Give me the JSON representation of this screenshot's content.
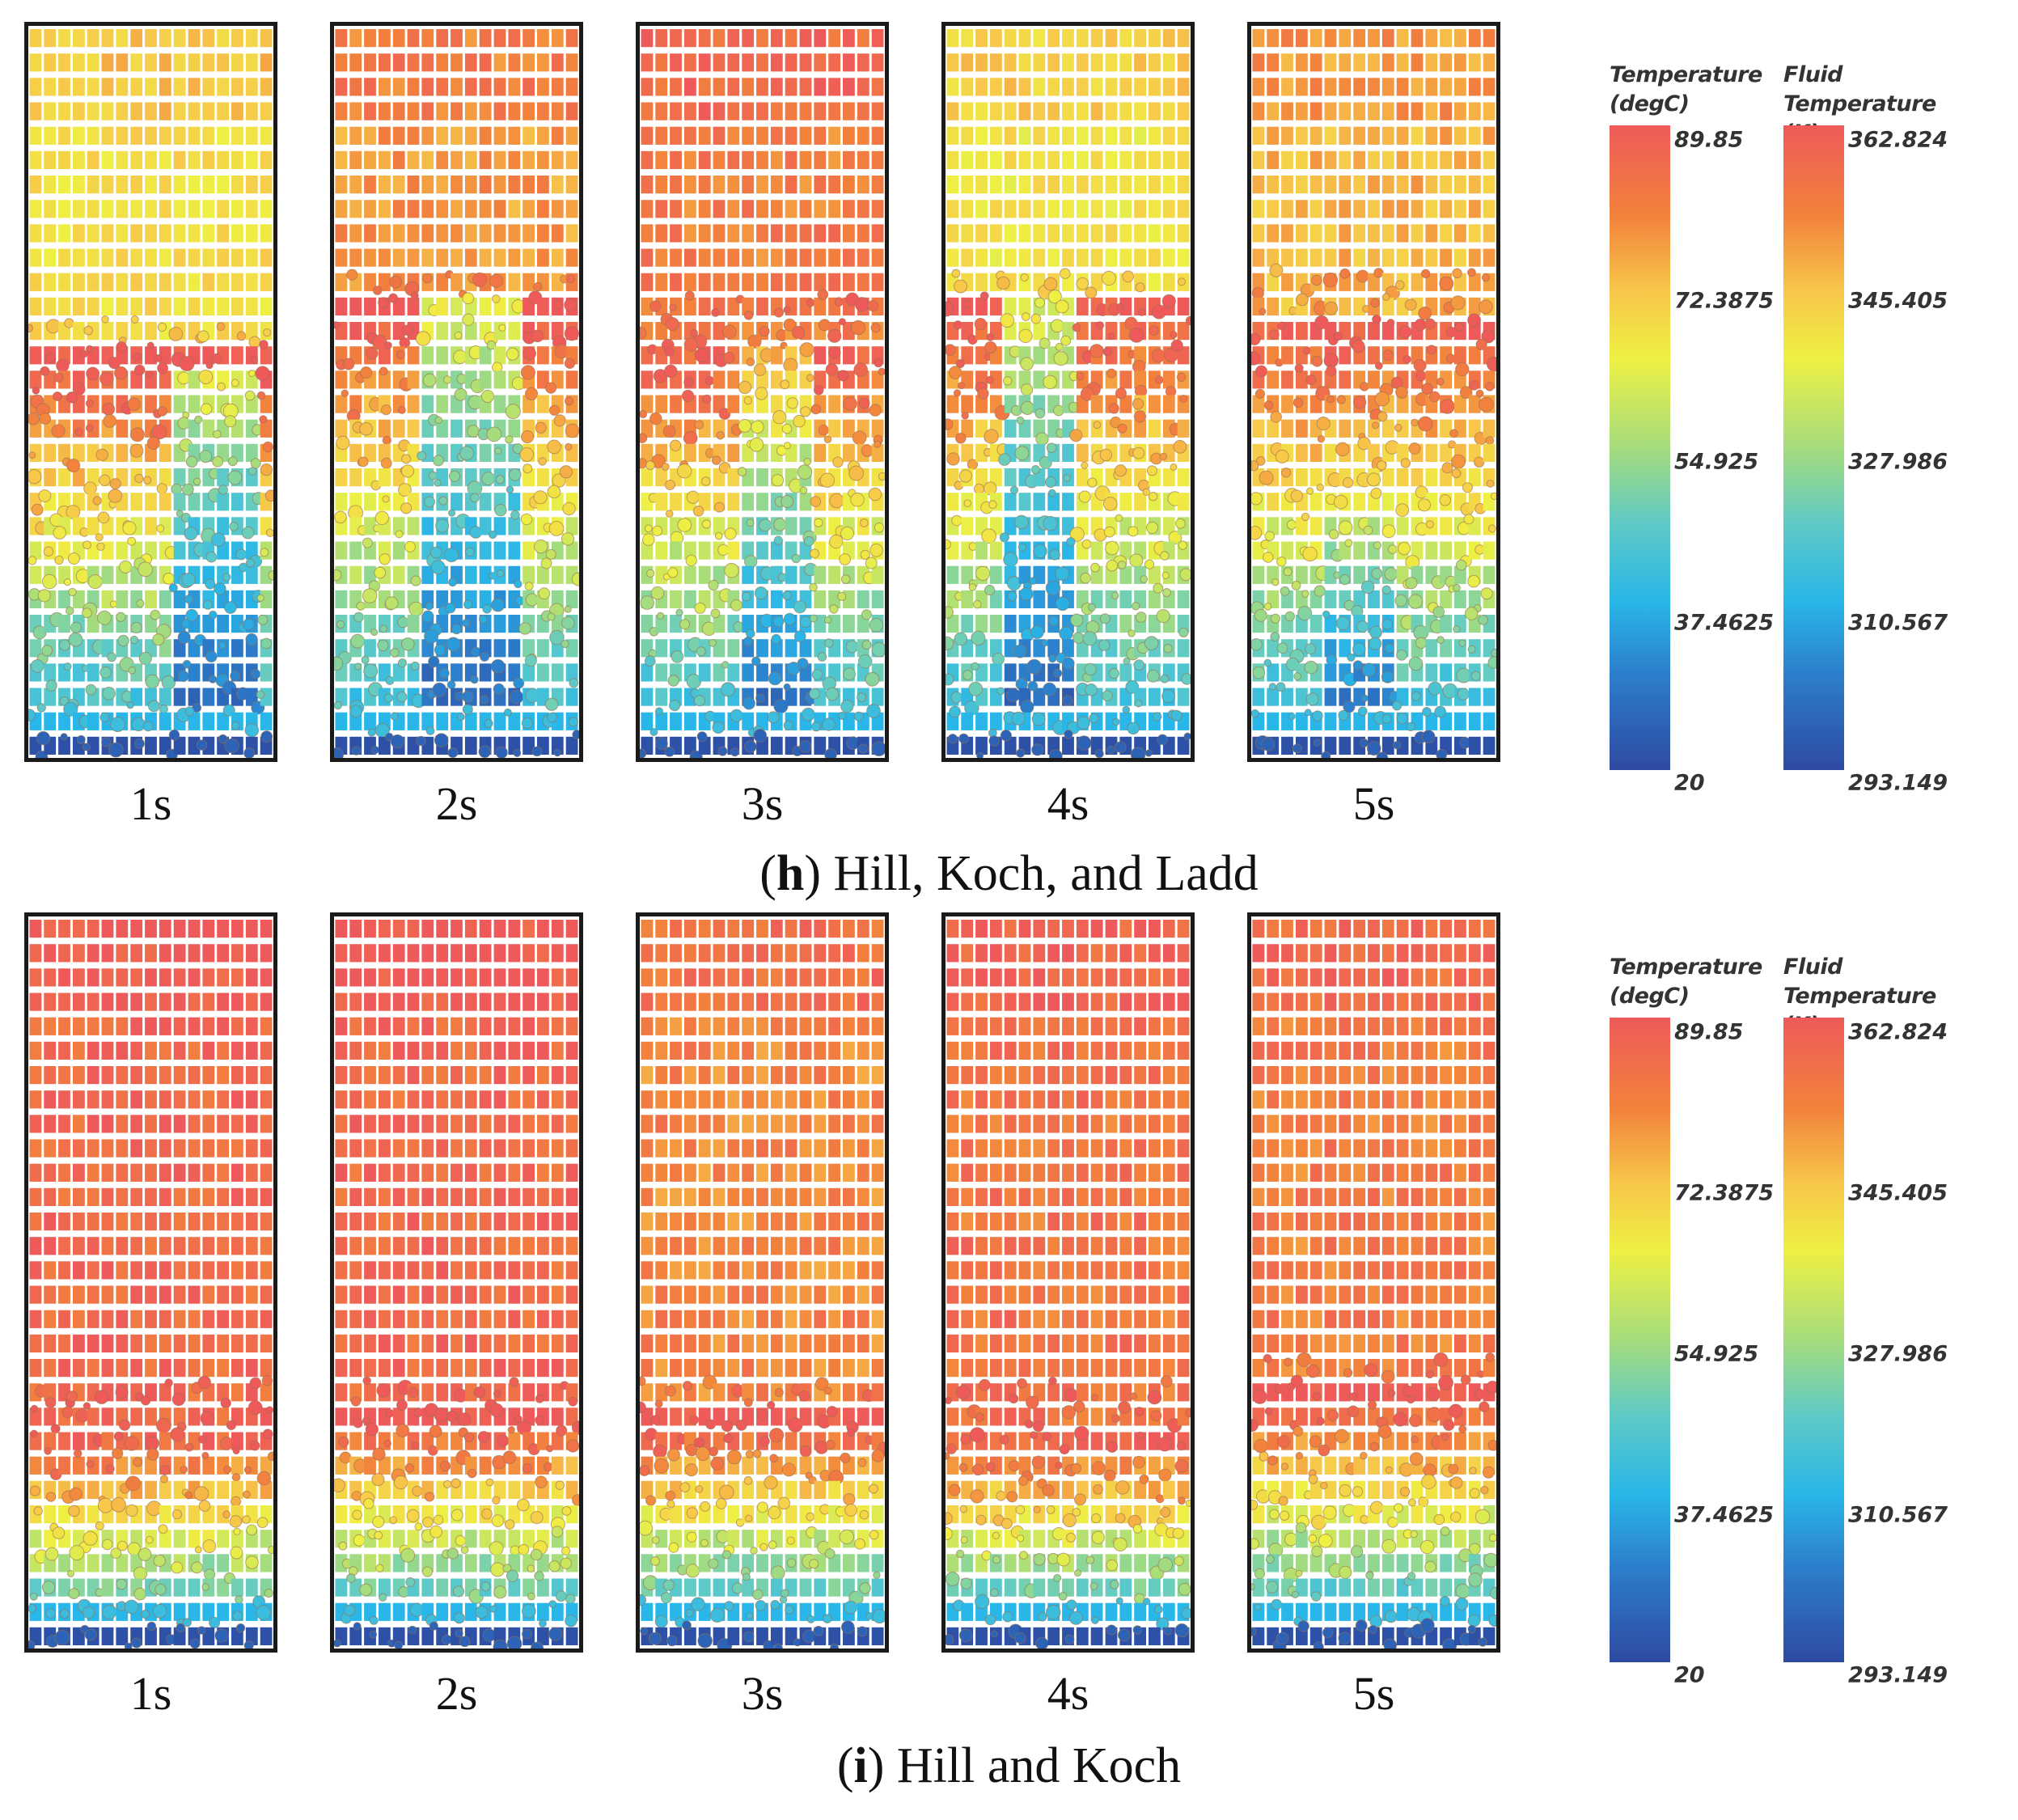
{
  "rows": [
    {
      "caption_letter": "h",
      "caption_text": ") Hill, Koch, and Ladd",
      "times": [
        "1s",
        "2s",
        "3s",
        "4s",
        "5s"
      ]
    },
    {
      "caption_letter": "i",
      "caption_text": ") Hill and Koch",
      "times": [
        "1s",
        "2s",
        "3s",
        "4s",
        "5s"
      ]
    }
  ],
  "legend": {
    "temperature": {
      "title_line1": "Temperature",
      "title_line2": "(degC)",
      "ticks": [
        "89.85",
        "72.3875",
        "54.925",
        "37.4625",
        "20"
      ]
    },
    "fluid": {
      "title_line1": "Fluid Temperature",
      "title_line2": "(K)",
      "ticks": [
        "362.824",
        "345.405",
        "327.986",
        "310.567",
        "293.149"
      ]
    }
  },
  "colors": {
    "hot": "#ee5a5a",
    "warm": "#f7a544",
    "mid": "#eef043",
    "cool": "#5ecac8",
    "cold": "#2e4aa2"
  }
}
